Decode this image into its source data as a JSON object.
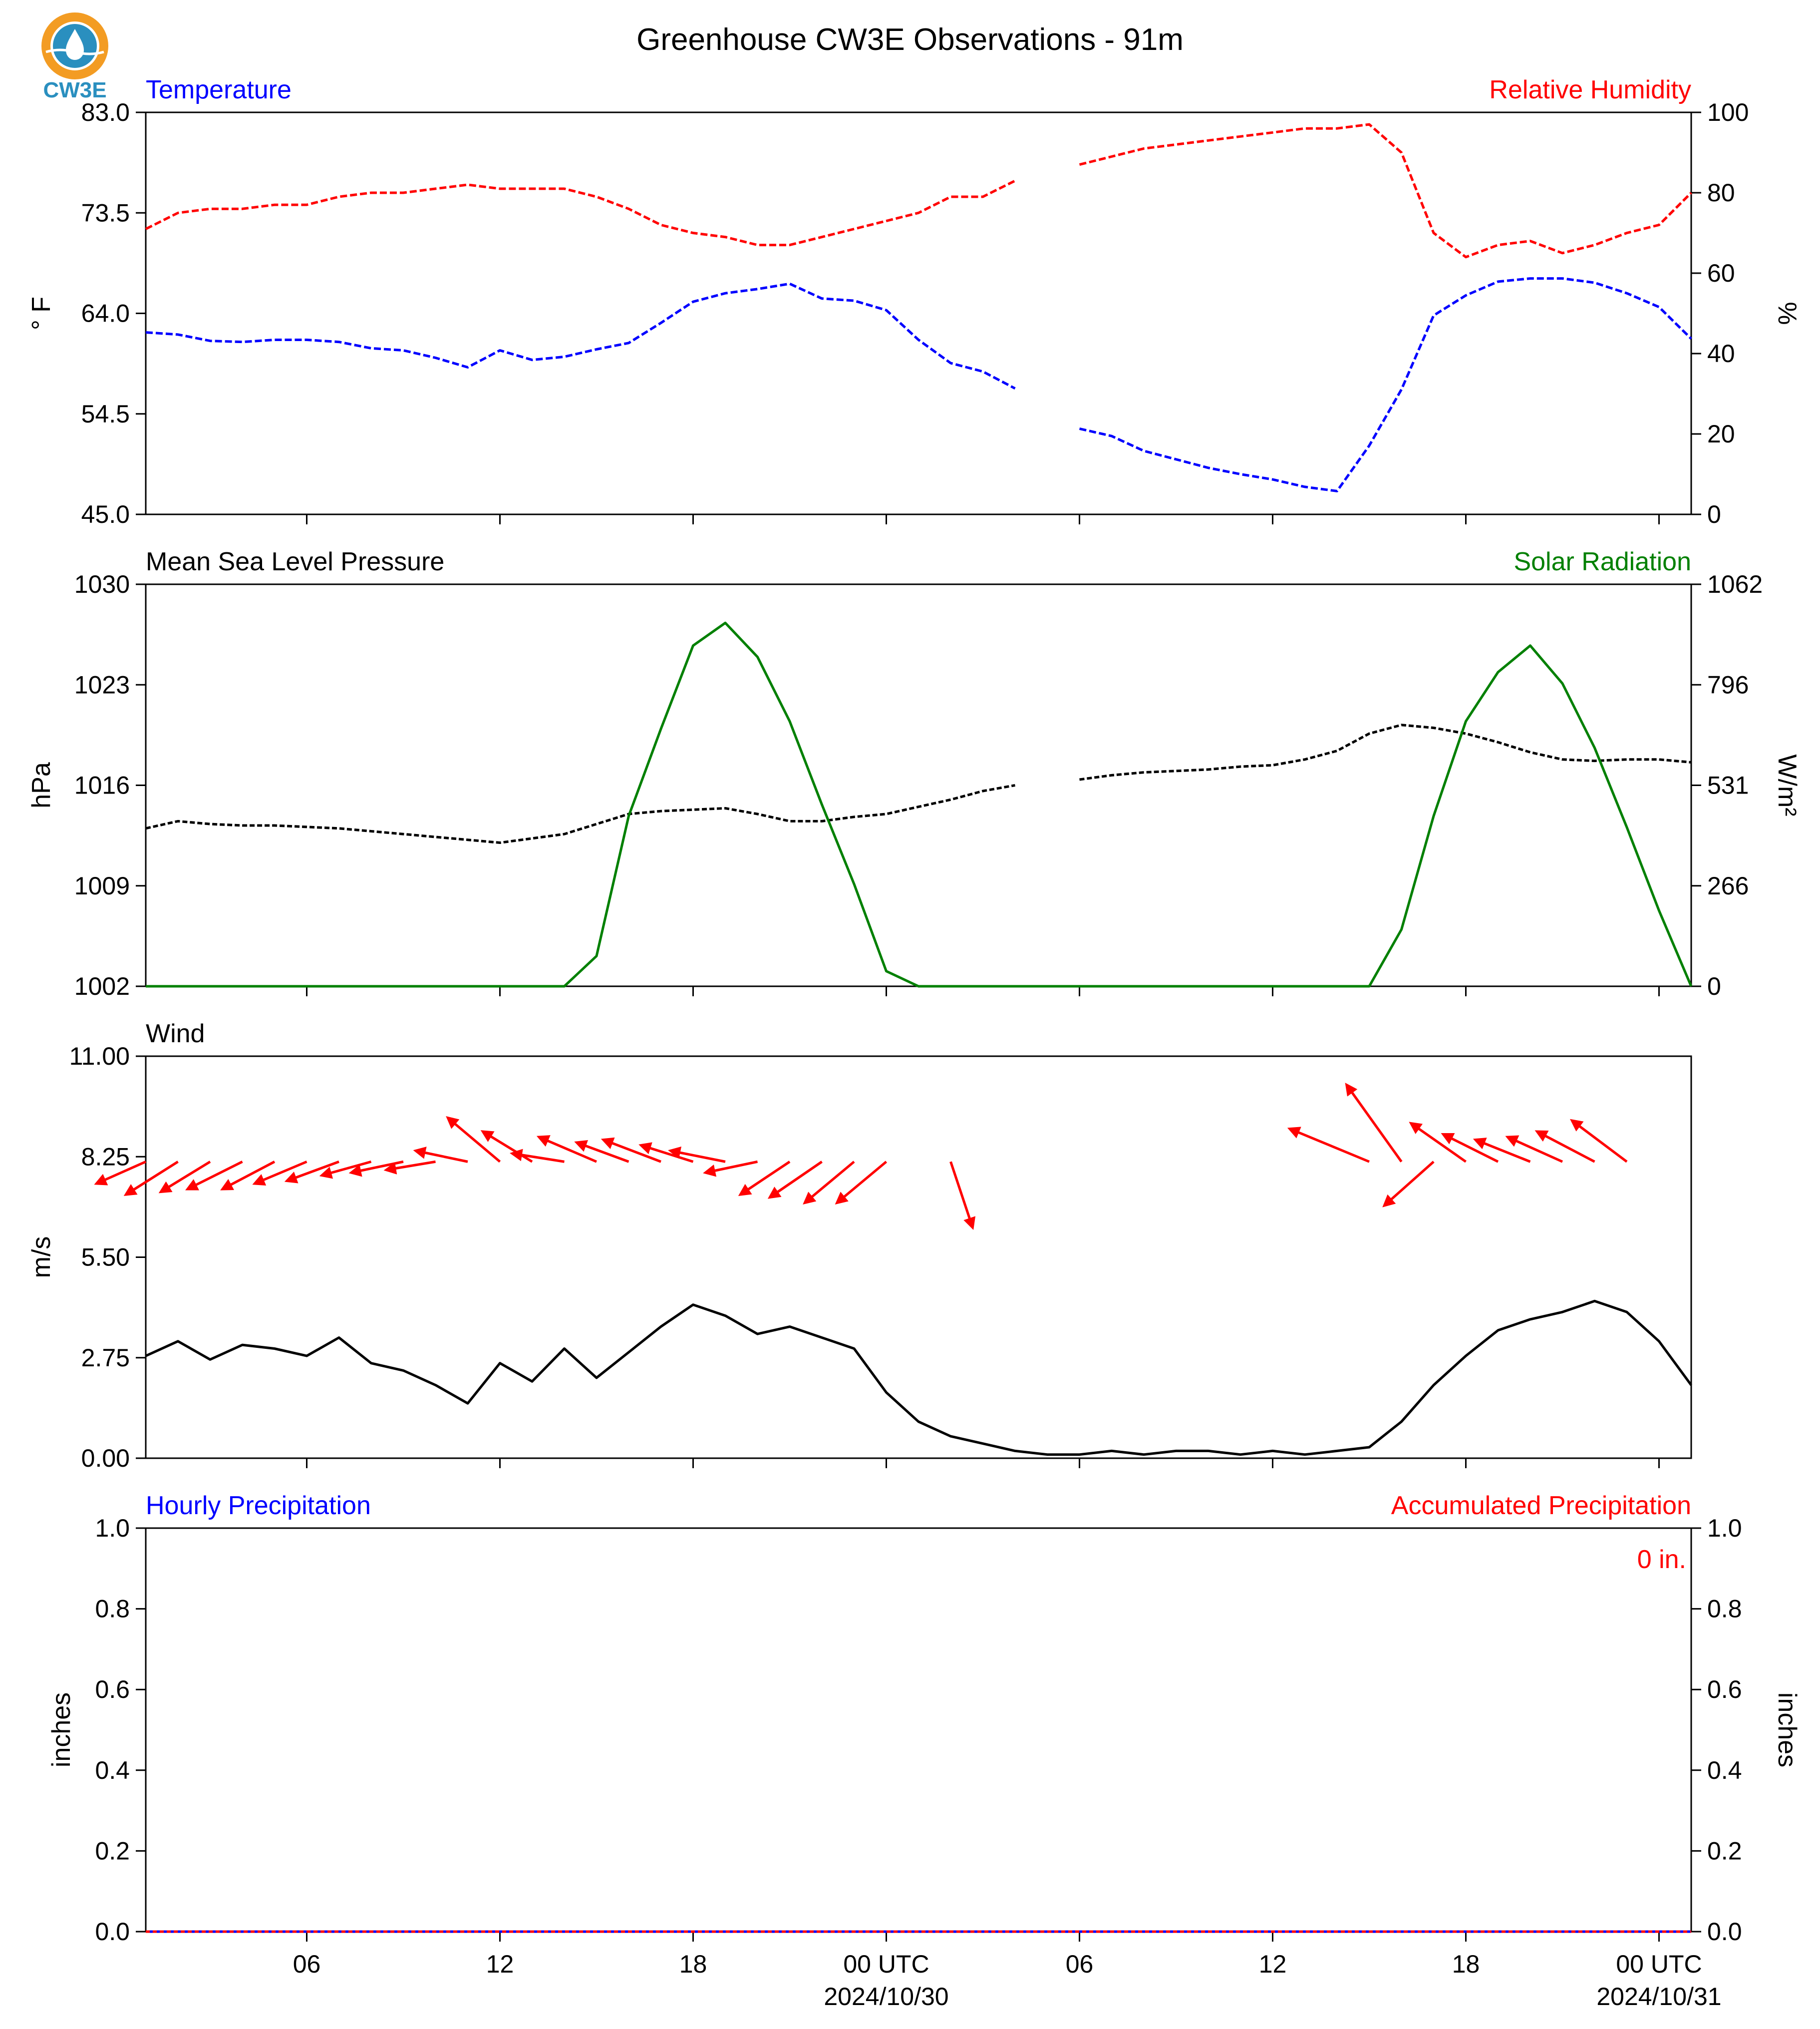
{
  "page": {
    "title": "Greenhouse CW3E Observations - 91m",
    "logo_text": "CW3E",
    "colors": {
      "temperature": "#0000ff",
      "humidity": "#ff0000",
      "pressure": "#000000",
      "solar": "#008000",
      "wind_speed": "#000000",
      "wind_arrows": "#ff0000",
      "hourly_precip": "#0000ff",
      "accum_precip": "#ff0000",
      "logo_orange": "#f39c23",
      "logo_blue": "#2a8fbf"
    }
  },
  "x_axis": {
    "tick_labels": [
      "06",
      "12",
      "18",
      "00 UTC",
      "06",
      "12",
      "18",
      "00 UTC"
    ],
    "tick_hours": [
      6,
      12,
      18,
      24,
      30,
      36,
      42,
      48
    ],
    "date_labels": [
      "2024/10/30",
      "2024/10/31"
    ],
    "date_hours": [
      24,
      48
    ],
    "range_hours": [
      1,
      49
    ]
  },
  "chart_data": [
    {
      "type": "line",
      "title_left": "Temperature",
      "title_right": "Relative Humidity",
      "ylabel_left": "° F",
      "ylabel_right": "%",
      "ylim_left": [
        45.0,
        83.0
      ],
      "ylim_right": [
        0,
        100
      ],
      "yticks_left": [
        "45.0",
        "54.5",
        "64.0",
        "73.5",
        "83.0"
      ],
      "yticks_right": [
        "0",
        "20",
        "40",
        "60",
        "80",
        "100"
      ],
      "x_unit": "hours since 2024/10/29 00 UTC",
      "series": [
        {
          "name": "Temperature",
          "axis": "left",
          "x": [
            1,
            2,
            3,
            4,
            5,
            6,
            7,
            8,
            9,
            10,
            11,
            12,
            13,
            14,
            15,
            16,
            17,
            18,
            19,
            20,
            21,
            22,
            23,
            24,
            25,
            26,
            27,
            28,
            29,
            30,
            31,
            32,
            33,
            34,
            35,
            36,
            37,
            38,
            39,
            40,
            41,
            42,
            43,
            44,
            45,
            46,
            47,
            48,
            49
          ],
          "y": [
            62.2,
            62.0,
            61.4,
            61.3,
            61.5,
            61.5,
            61.3,
            60.7,
            60.5,
            59.8,
            58.9,
            60.5,
            59.6,
            59.9,
            60.6,
            61.2,
            63.1,
            65.1,
            65.9,
            66.3,
            66.8,
            65.4,
            65.2,
            64.3,
            61.5,
            59.3,
            58.5,
            56.9,
            null,
            53.1,
            52.4,
            51.0,
            50.2,
            49.4,
            48.8,
            48.3,
            47.6,
            47.2,
            51.5,
            56.8,
            63.8,
            65.7,
            67.0,
            67.3,
            67.3,
            66.9,
            65.9,
            64.6,
            61.6
          ]
        },
        {
          "name": "Relative Humidity",
          "axis": "right",
          "x": [
            1,
            2,
            3,
            4,
            5,
            6,
            7,
            8,
            9,
            10,
            11,
            12,
            13,
            14,
            15,
            16,
            17,
            18,
            19,
            20,
            21,
            22,
            23,
            24,
            25,
            26,
            27,
            28,
            29,
            30,
            31,
            32,
            33,
            34,
            35,
            36,
            37,
            38,
            39,
            40,
            41,
            42,
            43,
            44,
            45,
            46,
            47,
            48,
            49
          ],
          "y": [
            71,
            75,
            76,
            76,
            77,
            77,
            79,
            80,
            80,
            81,
            82,
            81,
            81,
            81,
            79,
            76,
            72,
            70,
            69,
            67,
            67,
            69,
            71,
            73,
            75,
            79,
            79,
            83,
            null,
            87,
            89,
            91,
            92,
            93,
            94,
            95,
            96,
            96,
            97,
            90,
            70,
            64,
            67,
            68,
            65,
            67,
            70,
            72,
            80
          ]
        }
      ]
    },
    {
      "type": "line",
      "title_left": "Mean Sea Level Pressure",
      "title_right": "Solar Radiation",
      "ylabel_left": "hPa",
      "ylabel_right": "W/m²",
      "ylim_left": [
        1002,
        1030
      ],
      "ylim_right": [
        0,
        1062
      ],
      "yticks_left": [
        "1002",
        "1009",
        "1016",
        "1023",
        "1030"
      ],
      "yticks_right": [
        "0",
        "266",
        "531",
        "796",
        "1062"
      ],
      "x_unit": "hours since 2024/10/29 00 UTC",
      "series": [
        {
          "name": "Mean Sea Level Pressure",
          "axis": "left",
          "x": [
            1,
            2,
            3,
            4,
            5,
            6,
            7,
            8,
            9,
            10,
            11,
            12,
            13,
            14,
            15,
            16,
            17,
            18,
            19,
            20,
            21,
            22,
            23,
            24,
            25,
            26,
            27,
            28,
            29,
            30,
            31,
            32,
            33,
            34,
            35,
            36,
            37,
            38,
            39,
            40,
            41,
            42,
            43,
            44,
            45,
            46,
            47,
            48,
            49
          ],
          "y": [
            1013.0,
            1013.5,
            1013.3,
            1013.2,
            1013.2,
            1013.1,
            1013.0,
            1012.8,
            1012.6,
            1012.4,
            1012.2,
            1012.0,
            1012.3,
            1012.6,
            1013.3,
            1014.0,
            1014.2,
            1014.3,
            1014.4,
            1014.0,
            1013.5,
            1013.5,
            1013.8,
            1014.0,
            1014.5,
            1015.0,
            1015.6,
            1016.0,
            null,
            1016.4,
            1016.7,
            1016.9,
            1017.0,
            1017.1,
            1017.3,
            1017.4,
            1017.8,
            1018.4,
            1019.6,
            1020.2,
            1020.0,
            1019.6,
            1019.0,
            1018.3,
            1017.8,
            1017.7,
            1017.8,
            1017.8,
            1017.6
          ]
        },
        {
          "name": "Solar Radiation",
          "axis": "right",
          "x": [
            1,
            2,
            3,
            4,
            5,
            6,
            7,
            8,
            9,
            10,
            11,
            12,
            13,
            14,
            15,
            16,
            17,
            18,
            19,
            20,
            21,
            22,
            23,
            24,
            25,
            26,
            27,
            28,
            29,
            30,
            31,
            32,
            33,
            34,
            35,
            36,
            37,
            38,
            39,
            40,
            41,
            42,
            43,
            44,
            45,
            46,
            47,
            48,
            49
          ],
          "y": [
            0,
            0,
            0,
            0,
            0,
            0,
            0,
            0,
            0,
            0,
            0,
            0,
            0,
            0,
            80,
            450,
            680,
            900,
            960,
            870,
            700,
            480,
            270,
            40,
            0,
            0,
            0,
            0,
            0,
            0,
            0,
            0,
            0,
            0,
            0,
            0,
            0,
            0,
            0,
            150,
            450,
            700,
            830,
            900,
            800,
            630,
            420,
            200,
            0
          ]
        }
      ]
    },
    {
      "type": "line",
      "title_left": "Wind",
      "ylabel_left": "m/s",
      "ylim_left": [
        0.0,
        11.0
      ],
      "yticks_left": [
        "0.00",
        "2.75",
        "5.50",
        "8.25",
        "11.00"
      ],
      "x_unit": "hours since 2024/10/29 00 UTC",
      "series": [
        {
          "name": "Wind Speed",
          "axis": "left",
          "x": [
            1,
            2,
            3,
            4,
            5,
            6,
            7,
            8,
            9,
            10,
            11,
            12,
            13,
            14,
            15,
            16,
            17,
            18,
            19,
            20,
            21,
            22,
            23,
            24,
            25,
            26,
            27,
            28,
            29,
            30,
            31,
            32,
            33,
            34,
            35,
            36,
            37,
            38,
            39,
            40,
            41,
            42,
            43,
            44,
            45,
            46,
            47,
            48,
            49
          ],
          "y": [
            2.8,
            3.2,
            2.7,
            3.1,
            3.0,
            2.8,
            3.3,
            2.6,
            2.4,
            2.0,
            1.5,
            2.6,
            2.1,
            3.0,
            2.2,
            2.9,
            3.6,
            4.2,
            3.9,
            3.4,
            3.6,
            3.3,
            3.0,
            1.8,
            1.0,
            0.6,
            0.4,
            0.2,
            0.1,
            0.1,
            0.2,
            0.1,
            0.2,
            0.2,
            0.1,
            0.2,
            0.1,
            0.2,
            0.3,
            1.0,
            2.0,
            2.8,
            3.5,
            3.8,
            4.0,
            4.3,
            4.0,
            3.2,
            2.0
          ]
        }
      ],
      "wind_vectors": {
        "unit": "m/s",
        "x": [
          1,
          2,
          3,
          4,
          5,
          6,
          7,
          8,
          9,
          10,
          11,
          12,
          13,
          14,
          15,
          16,
          17,
          18,
          19,
          20,
          21,
          22,
          23,
          24,
          26,
          39,
          40,
          41,
          42,
          43,
          44,
          45,
          46,
          47
        ],
        "u": [
          -1.8,
          -1.9,
          -1.8,
          -2.0,
          -1.9,
          -1.9,
          -1.9,
          -1.8,
          -1.9,
          -1.8,
          -1.9,
          -1.9,
          -1.8,
          -1.9,
          -2.1,
          -1.9,
          -2.1,
          -1.9,
          -2.0,
          -1.9,
          -1.8,
          -1.9,
          -1.8,
          -1.8,
          0.8,
          -2.9,
          -2.0,
          -1.8,
          -2.0,
          -2.0,
          -2.0,
          -2.0,
          -2.1,
          -2.0
        ],
        "v": [
          -0.8,
          -1.2,
          -1.1,
          -1.0,
          -1.0,
          -0.8,
          -0.7,
          -0.5,
          -0.4,
          -0.3,
          0.4,
          1.6,
          1.1,
          0.3,
          0.9,
          0.7,
          0.8,
          0.6,
          0.4,
          -0.4,
          -1.2,
          -1.3,
          -1.5,
          -1.5,
          -2.4,
          1.2,
          2.8,
          -1.6,
          1.4,
          1.0,
          0.8,
          0.9,
          1.1,
          1.5
        ]
      }
    },
    {
      "type": "line",
      "title_left": "Hourly Precipitation",
      "title_right": "Accumulated Precipitation",
      "ylabel_left": "inches",
      "ylabel_right": "inches",
      "ylim_left": [
        0.0,
        1.0
      ],
      "ylim_right": [
        0.0,
        1.0
      ],
      "yticks_left": [
        "0.0",
        "0.2",
        "0.4",
        "0.6",
        "0.8",
        "1.0"
      ],
      "yticks_right": [
        "0.0",
        "0.2",
        "0.4",
        "0.6",
        "0.8",
        "1.0"
      ],
      "annotation": "0 in.",
      "x_unit": "hours since 2024/10/29 00 UTC",
      "series": [
        {
          "name": "Hourly Precipitation",
          "axis": "left",
          "x": [
            1,
            49
          ],
          "y": [
            0,
            0
          ]
        },
        {
          "name": "Accumulated Precipitation",
          "axis": "right",
          "x": [
            1,
            49
          ],
          "y": [
            0,
            0
          ]
        }
      ]
    }
  ]
}
